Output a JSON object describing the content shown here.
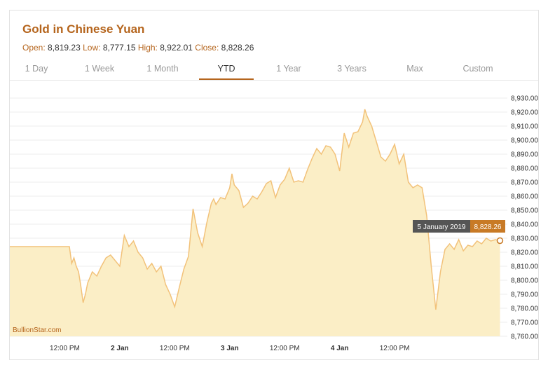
{
  "title": "Gold in Chinese Yuan",
  "ohlc": {
    "open_label": "Open:",
    "open": "8,819.23",
    "low_label": "Low:",
    "low": "8,777.15",
    "high_label": "High:",
    "high": "8,922.01",
    "close_label": "Close:",
    "close": "8,828.26"
  },
  "tabs": [
    {
      "label": "1 Day",
      "active": false
    },
    {
      "label": "1 Week",
      "active": false
    },
    {
      "label": "1 Month",
      "active": false
    },
    {
      "label": "YTD",
      "active": true
    },
    {
      "label": "1 Year",
      "active": false
    },
    {
      "label": "3 Years",
      "active": false
    },
    {
      "label": "Max",
      "active": false
    },
    {
      "label": "Custom",
      "active": false
    }
  ],
  "watermark": "BullionStar.com",
  "tooltip": {
    "date": "5 January 2019",
    "value": "8,828.26"
  },
  "colors": {
    "accent": "#b5651d",
    "line": "#f2c27a",
    "fill": "#fbeec6",
    "tooltip_dark": "#555555",
    "tooltip_accent": "#c87a26"
  },
  "chart_data": {
    "type": "area",
    "ylim": [
      8760,
      8930
    ],
    "yticks": [
      8760,
      8770,
      8780,
      8790,
      8800,
      8810,
      8820,
      8830,
      8840,
      8850,
      8860,
      8870,
      8880,
      8890,
      8900,
      8910,
      8920,
      8930
    ],
    "ytick_labels": [
      "8,760.00",
      "8,770.00",
      "8,780.00",
      "8,790.00",
      "8,800.00",
      "8,810.00",
      "8,820.00",
      "8,830.00",
      "8,840.00",
      "8,850.00",
      "8,860.00",
      "8,870.00",
      "8,880.00",
      "8,890.00",
      "8,900.00",
      "8,910.00",
      "8,920.00",
      "8,930.00"
    ],
    "x_range_hours": [
      0,
      108
    ],
    "xticks": [
      {
        "label": "12:00 PM",
        "t": 12,
        "bold": false
      },
      {
        "label": "2 Jan",
        "t": 24,
        "bold": true
      },
      {
        "label": "12:00 PM",
        "t": 36,
        "bold": false
      },
      {
        "label": "3 Jan",
        "t": 48,
        "bold": true
      },
      {
        "label": "12:00 PM",
        "t": 60,
        "bold": false
      },
      {
        "label": "4 Jan",
        "t": 72,
        "bold": true
      },
      {
        "label": "12:00 PM",
        "t": 84,
        "bold": false
      }
    ],
    "series": [
      {
        "name": "Gold in Chinese Yuan",
        "x": [
          0,
          13,
          13.5,
          14,
          14.5,
          15,
          15.5,
          16,
          16.5,
          17,
          18,
          19,
          20,
          21,
          22,
          23,
          24,
          25,
          26,
          27,
          28,
          29,
          30,
          31,
          32,
          33,
          34,
          35,
          36,
          37,
          38,
          39,
          40,
          41,
          42,
          43,
          44,
          44.5,
          45,
          46,
          47,
          48,
          48.5,
          49,
          50,
          51,
          52,
          53,
          54,
          55,
          56,
          57,
          58,
          59,
          60,
          61,
          62,
          63,
          64,
          65,
          66,
          67,
          68,
          69,
          70,
          71,
          72,
          73,
          74,
          75,
          76,
          77,
          77.5,
          78,
          79,
          80,
          81,
          82,
          83,
          84,
          85,
          86,
          87,
          88,
          89,
          90,
          91,
          92,
          93,
          94,
          95,
          96,
          97,
          98,
          99,
          100,
          101,
          102,
          103,
          104,
          105,
          106,
          107
        ],
        "values": [
          8824,
          8824,
          8812,
          8816,
          8810,
          8806,
          8796,
          8784,
          8790,
          8798,
          8806,
          8803,
          8810,
          8816,
          8818,
          8814,
          8810,
          8832,
          8824,
          8828,
          8820,
          8816,
          8808,
          8812,
          8806,
          8810,
          8797,
          8790,
          8781,
          8795,
          8808,
          8817,
          8851,
          8834,
          8824,
          8841,
          8855,
          8858,
          8854,
          8859,
          8858,
          8866,
          8876,
          8868,
          8864,
          8852,
          8855,
          8860,
          8858,
          8863,
          8869,
          8871,
          8859,
          8868,
          8872,
          8880,
          8870,
          8871,
          8870,
          8879,
          8887,
          8894,
          8890,
          8896,
          8895,
          8890,
          8878,
          8905,
          8895,
          8905,
          8906,
          8913,
          8922,
          8917,
          8910,
          8899,
          8888,
          8885,
          8890,
          8897,
          8883,
          8890,
          8870,
          8866,
          8868,
          8866,
          8846,
          8810,
          8779,
          8806,
          8822,
          8826,
          8822,
          8829,
          8821,
          8825,
          8824,
          8828,
          8826,
          8830,
          8828,
          8829,
          8828.26
        ]
      }
    ],
    "watermark": "BullionStar.com"
  }
}
